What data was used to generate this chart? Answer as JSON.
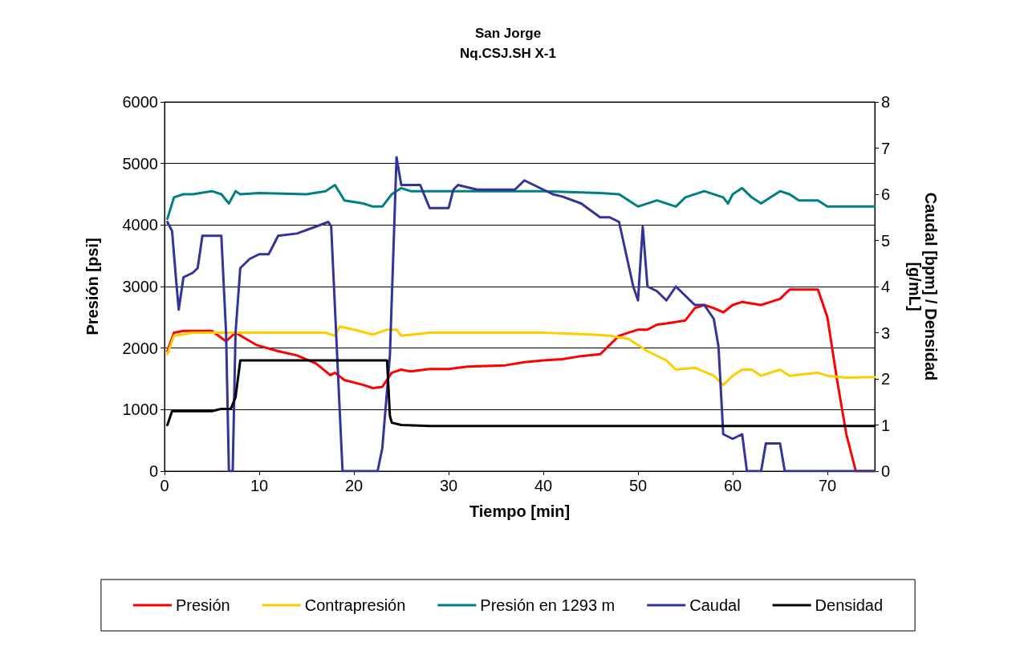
{
  "chart_data": {
    "type": "line",
    "title": "San Jorge",
    "subtitle": "Nq.CSJ.SH X-1",
    "xlabel": "Tiempo [min]",
    "ylabel": "Presión [psi]",
    "y2label": "Caudal [bpm] / Densidad\n[g/mL]",
    "xlim": [
      0,
      75
    ],
    "xticks": [
      0,
      10,
      20,
      30,
      40,
      50,
      60,
      70
    ],
    "ylim": [
      0,
      6000
    ],
    "yticks": [
      0,
      1000,
      2000,
      3000,
      4000,
      5000,
      6000
    ],
    "y2lim": [
      0,
      8
    ],
    "y2ticks": [
      0,
      1,
      2,
      3,
      4,
      5,
      6,
      7,
      8
    ],
    "grid": "y",
    "legend": "bottom",
    "marker": "none",
    "line_style": "solid",
    "series": [
      {
        "name": "Presión",
        "color": "#ff0000",
        "x": [
          0.3,
          1,
          2,
          5,
          6.5,
          7.5,
          9.7,
          12,
          14,
          16,
          17.5,
          18,
          19,
          21,
          22,
          23,
          24,
          25,
          26,
          28,
          30,
          32,
          36,
          38,
          40,
          42,
          44,
          46,
          47,
          48,
          50,
          51,
          52,
          53,
          55,
          56,
          57,
          58,
          59,
          60,
          61,
          63,
          64,
          65,
          66,
          69,
          70,
          71,
          72,
          73,
          75
        ],
        "values": [
          1950,
          2250,
          2280,
          2280,
          2110,
          2250,
          2050,
          1950,
          1880,
          1750,
          1560,
          1600,
          1480,
          1400,
          1350,
          1370,
          1600,
          1650,
          1620,
          1660,
          1660,
          1700,
          1720,
          1770,
          1800,
          1820,
          1870,
          1900,
          2050,
          2200,
          2300,
          2300,
          2380,
          2400,
          2450,
          2650,
          2700,
          2650,
          2580,
          2700,
          2750,
          2700,
          2750,
          2800,
          2950,
          2950,
          2500,
          1500,
          600,
          0,
          0
        ]
      },
      {
        "name": "Contrapresión",
        "color": "#ffcc00",
        "x": [
          0.3,
          1,
          3,
          10,
          17,
          18,
          18.5,
          20,
          22,
          23.5,
          24.5,
          25,
          28,
          40,
          45,
          47,
          49,
          50.5,
          51,
          53,
          54,
          56,
          58,
          59,
          60,
          61,
          62,
          63,
          65,
          66,
          69,
          70,
          72,
          75
        ],
        "values": [
          1900,
          2200,
          2250,
          2250,
          2250,
          2200,
          2350,
          2300,
          2220,
          2300,
          2300,
          2200,
          2250,
          2250,
          2220,
          2200,
          2150,
          2000,
          1950,
          1800,
          1650,
          1680,
          1550,
          1400,
          1550,
          1650,
          1650,
          1550,
          1650,
          1550,
          1600,
          1550,
          1520,
          1530
        ]
      },
      {
        "name": "Presión en 1293 m",
        "color": "#008080",
        "x": [
          0.3,
          1,
          2,
          3,
          5,
          6,
          6.8,
          7.5,
          8,
          10,
          15,
          17,
          18,
          19,
          21,
          22,
          23,
          24,
          25,
          26,
          30,
          40,
          46,
          48,
          50,
          52,
          54,
          55,
          57,
          59,
          59.5,
          60,
          61,
          62,
          63,
          64,
          65,
          66,
          67,
          69,
          70,
          72,
          75
        ],
        "values": [
          4100,
          4450,
          4500,
          4500,
          4550,
          4500,
          4350,
          4550,
          4500,
          4520,
          4500,
          4550,
          4650,
          4400,
          4350,
          4300,
          4300,
          4500,
          4600,
          4550,
          4550,
          4550,
          4520,
          4500,
          4300,
          4400,
          4300,
          4450,
          4550,
          4450,
          4350,
          4500,
          4600,
          4450,
          4350,
          4450,
          4550,
          4500,
          4400,
          4400,
          4300,
          4300,
          4300
        ]
      },
      {
        "name": "Caudal",
        "color": "#333399",
        "axis": "y2",
        "x": [
          0.3,
          0.8,
          1.2,
          1.5,
          2,
          3,
          3.5,
          4,
          5,
          6,
          6.5,
          6.8,
          7.2,
          7.5,
          8,
          9,
          10,
          11,
          12,
          14,
          16,
          17.3,
          17.6,
          18.3,
          18.8,
          22.5,
          23,
          23.8,
          24.5,
          25,
          27,
          28,
          30,
          30.5,
          31,
          33,
          35,
          37,
          38,
          40,
          41,
          42,
          44,
          46,
          47,
          48,
          49.5,
          50,
          50.5,
          51,
          52,
          53,
          54,
          55,
          56,
          57,
          58,
          58.5,
          59,
          60,
          61,
          61.5,
          63,
          63.5,
          65,
          65.5,
          75
        ],
        "values": [
          5.4,
          5.2,
          4.2,
          3.5,
          4.2,
          4.3,
          4.4,
          5.1,
          5.1,
          5.1,
          3.0,
          0,
          0,
          3.0,
          4.4,
          4.6,
          4.7,
          4.7,
          5.1,
          5.15,
          5.3,
          5.4,
          5.3,
          2.2,
          0,
          0,
          0.5,
          2.5,
          6.8,
          6.2,
          6.2,
          5.7,
          5.7,
          6.1,
          6.2,
          6.1,
          6.1,
          6.1,
          6.3,
          6.1,
          6.0,
          5.95,
          5.8,
          5.5,
          5.5,
          5.4,
          4.0,
          3.7,
          5.3,
          4.0,
          3.9,
          3.7,
          4.0,
          3.8,
          3.6,
          3.6,
          3.3,
          2.7,
          0.8,
          0.7,
          0.8,
          0,
          0,
          0.6,
          0.6,
          0,
          0
        ]
      },
      {
        "name": "Densidad",
        "color": "#000000",
        "axis": "y2",
        "x": [
          0.3,
          0.8,
          5,
          6,
          7,
          7.5,
          8,
          9,
          18,
          23,
          23.5,
          23.8,
          24,
          25,
          28,
          75
        ],
        "values": [
          1.0,
          1.3,
          1.3,
          1.35,
          1.35,
          1.6,
          2.4,
          2.4,
          2.4,
          2.4,
          2.4,
          1.2,
          1.05,
          1.0,
          0.98,
          0.98
        ]
      }
    ]
  }
}
